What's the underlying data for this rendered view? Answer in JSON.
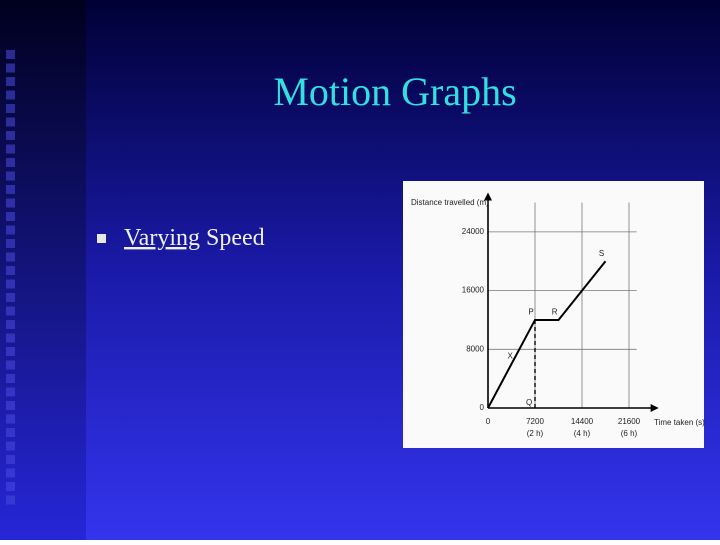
{
  "slide": {
    "title": "Motion Graphs",
    "bullet": {
      "underlined": "Varying",
      "rest": "Speed"
    }
  },
  "chart_data": {
    "type": "line",
    "x_label": "Time taken (s)",
    "y_label": "Distance travelled (m)",
    "x": [
      0,
      7200,
      10800,
      18000
    ],
    "series": [
      {
        "color": "#000000",
        "values": [
          0,
          12000,
          12000,
          20000
        ]
      }
    ],
    "xlim": [
      0,
      24000
    ],
    "ylim": [
      0,
      28000
    ],
    "xticks": [
      0,
      7200,
      14400,
      21600
    ],
    "x_tick_sublabels": [
      "(2 h)",
      "(4 h)",
      "(6 h)"
    ],
    "yticks": [
      0,
      8000,
      16000,
      24000
    ],
    "grid": true,
    "dashed_drop_x": 7200,
    "annotations": [
      {
        "text": "X",
        "x": 3400,
        "y": 7000
      },
      {
        "text": "P",
        "x": 6600,
        "y": 13000
      },
      {
        "text": "R",
        "x": 10200,
        "y": 13000
      },
      {
        "text": "S",
        "x": 17400,
        "y": 21000
      },
      {
        "text": "Q",
        "x": 6300,
        "y": 700
      }
    ]
  }
}
